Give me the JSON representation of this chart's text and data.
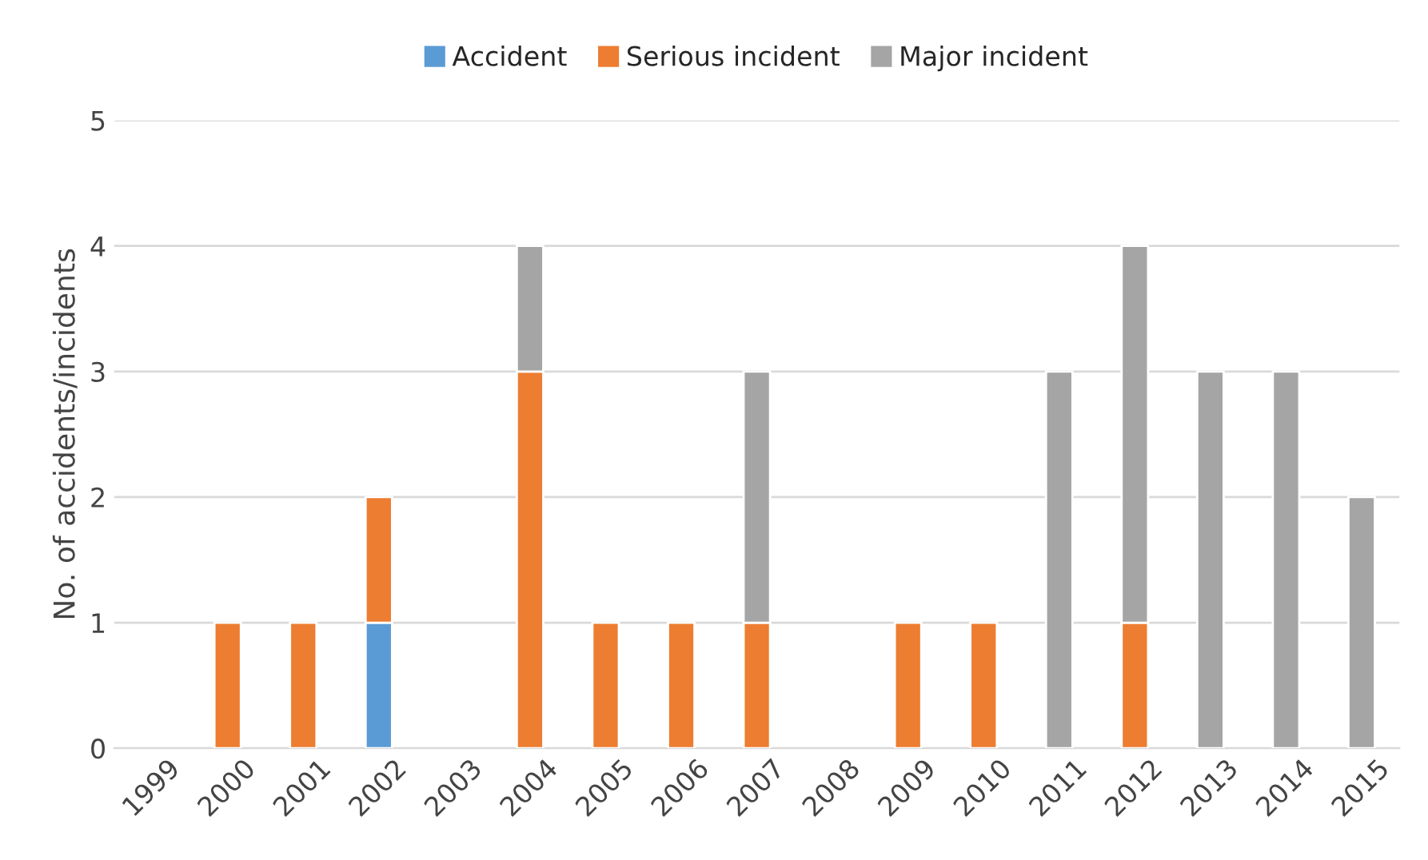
{
  "chart_data": {
    "type": "bar",
    "stacked": true,
    "ylabel": "No. of accidents/incidents",
    "categories": [
      "1999",
      "2000",
      "2001",
      "2002",
      "2003",
      "2004",
      "2005",
      "2006",
      "2007",
      "2008",
      "2009",
      "2010",
      "2011",
      "2012",
      "2013",
      "2014",
      "2015"
    ],
    "series": [
      {
        "name": "Accident",
        "color": "#5b9bd5",
        "values": [
          0,
          0,
          0,
          1,
          0,
          0,
          0,
          0,
          0,
          0,
          0,
          0,
          0,
          0,
          0,
          0,
          0
        ]
      },
      {
        "name": "Serious incident",
        "color": "#ed7d31",
        "values": [
          0,
          1,
          1,
          1,
          0,
          3,
          1,
          1,
          1,
          0,
          1,
          1,
          0,
          1,
          0,
          0,
          0
        ]
      },
      {
        "name": "Major incident",
        "color": "#a5a5a5",
        "values": [
          0,
          0,
          0,
          0,
          0,
          1,
          0,
          0,
          2,
          0,
          0,
          0,
          3,
          3,
          3,
          3,
          2
        ]
      }
    ],
    "ylim": [
      0,
      5
    ],
    "yticks": [
      0,
      1,
      2,
      3,
      4,
      5
    ],
    "grid": "y",
    "legend": "top"
  }
}
